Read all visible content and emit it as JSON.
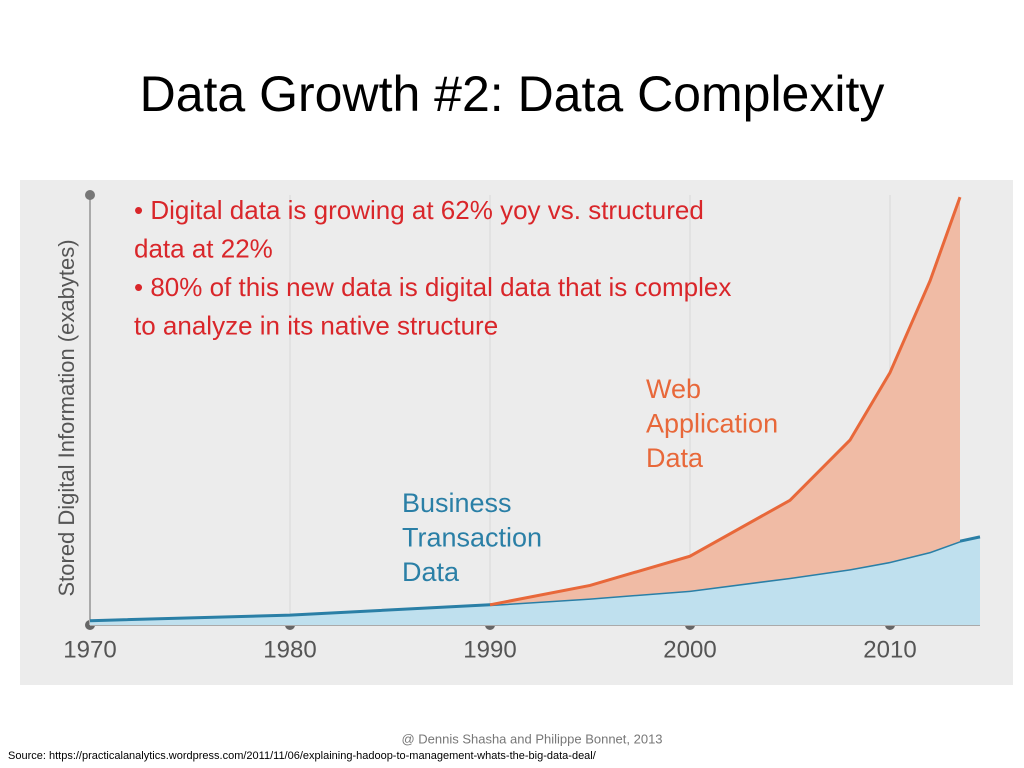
{
  "slide": {
    "title": "Data Growth #2: Data Complexity",
    "footer": "@ Dennis Shasha and Philippe Bonnet, 2013",
    "source": "Source: https://practicalanalytics.wordpress.com/2011/11/06/explaining-hadoop-to-management-whats-the-big-data-deal/"
  },
  "chart_data": {
    "type": "stacked_area",
    "ylabel": "Stored Digital Information (exabytes)",
    "bullets": [
      "• Digital data is growing at 62% yoy vs. structured",
      "data at 22%",
      "• 80% of this new data is digital data that is complex",
      "to analyze in its native structure"
    ],
    "x": [
      1970,
      1980,
      1990,
      1995,
      2000,
      2005,
      2008,
      2010,
      2012,
      2013.5,
      2014.5
    ],
    "series": [
      {
        "name": "Business Transaction Data",
        "label_lines": [
          "Business",
          "Transaction",
          "Data"
        ],
        "color": "#2a7fa6",
        "fill": "#bfe0ee",
        "values": [
          1,
          2.3,
          4.7,
          6.2,
          8,
          11,
          13,
          14.7,
          17,
          19.5,
          20.5
        ]
      },
      {
        "name": "Web Application Data",
        "label_lines": [
          "Web",
          "Application",
          "Data"
        ],
        "color": "#e8683a",
        "fill": "#f0bba5",
        "values": [
          null,
          null,
          0,
          3,
          8,
          18,
          30,
          44,
          63,
          80,
          null
        ]
      }
    ],
    "xlim": [
      1970,
      2014.5
    ],
    "xticks": [
      1970,
      1980,
      1990,
      2000,
      2010
    ],
    "ylim": [
      0,
      100
    ],
    "grid": true
  }
}
